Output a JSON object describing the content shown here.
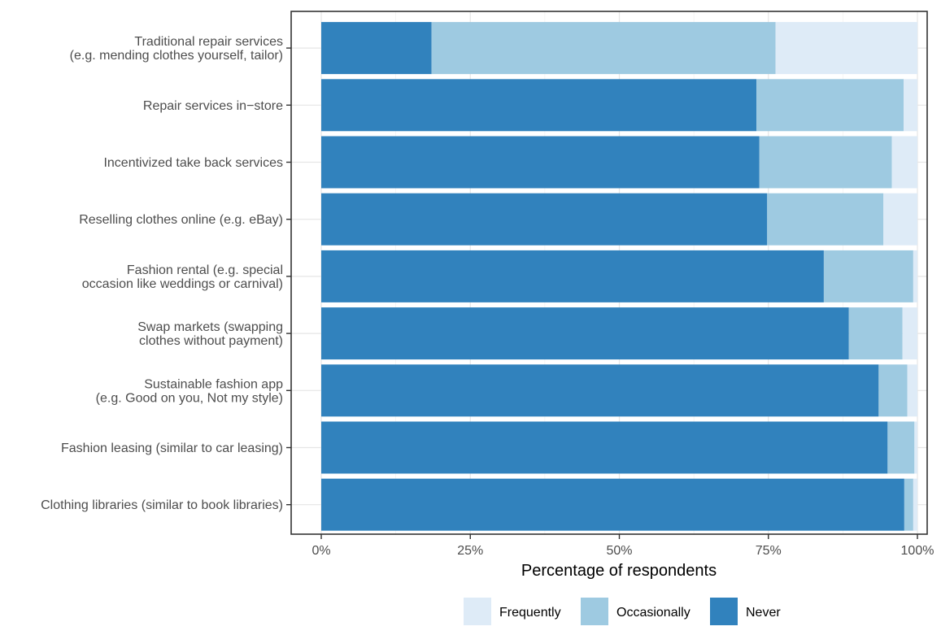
{
  "chart_data": {
    "type": "bar",
    "orientation": "horizontal",
    "stacked": true,
    "xlabel": "Percentage of respondents",
    "ylabel": "",
    "xlim": [
      0,
      1
    ],
    "xticks": [
      0,
      0.25,
      0.5,
      0.75,
      1.0
    ],
    "xtick_labels": [
      "0%",
      "25%",
      "50%",
      "75%",
      "100%"
    ],
    "grid": true,
    "legend": {
      "position": "bottom",
      "entries": [
        "Frequently",
        "Occasionally",
        "Never"
      ]
    },
    "categories": [
      [
        "Traditional repair services",
        "(e.g. mending clothes yourself, tailor)"
      ],
      [
        "Repair services in−store"
      ],
      [
        "Incentivized take back services"
      ],
      [
        "Reselling clothes online (e.g. eBay)"
      ],
      [
        "Fashion rental (e.g. special",
        "occasion like weddings or carnival)"
      ],
      [
        "Swap markets (swapping",
        "clothes without payment)"
      ],
      [
        "Sustainable fashion app",
        "(e.g. Good on you, Not my style)"
      ],
      [
        "Fashion leasing (similar to car leasing)"
      ],
      [
        "Clothing libraries (similar to book libraries)"
      ]
    ],
    "series": [
      {
        "name": "Never",
        "color": "#3182bd",
        "values": [
          0.185,
          0.73,
          0.735,
          0.748,
          0.843,
          0.885,
          0.935,
          0.95,
          0.978
        ]
      },
      {
        "name": "Occasionally",
        "color": "#9ecae1",
        "values": [
          0.577,
          0.247,
          0.222,
          0.195,
          0.15,
          0.09,
          0.048,
          0.045,
          0.015
        ]
      },
      {
        "name": "Frequently",
        "color": "#deebf7",
        "values": [
          0.238,
          0.023,
          0.043,
          0.057,
          0.007,
          0.025,
          0.017,
          0.005,
          0.007
        ]
      }
    ]
  }
}
